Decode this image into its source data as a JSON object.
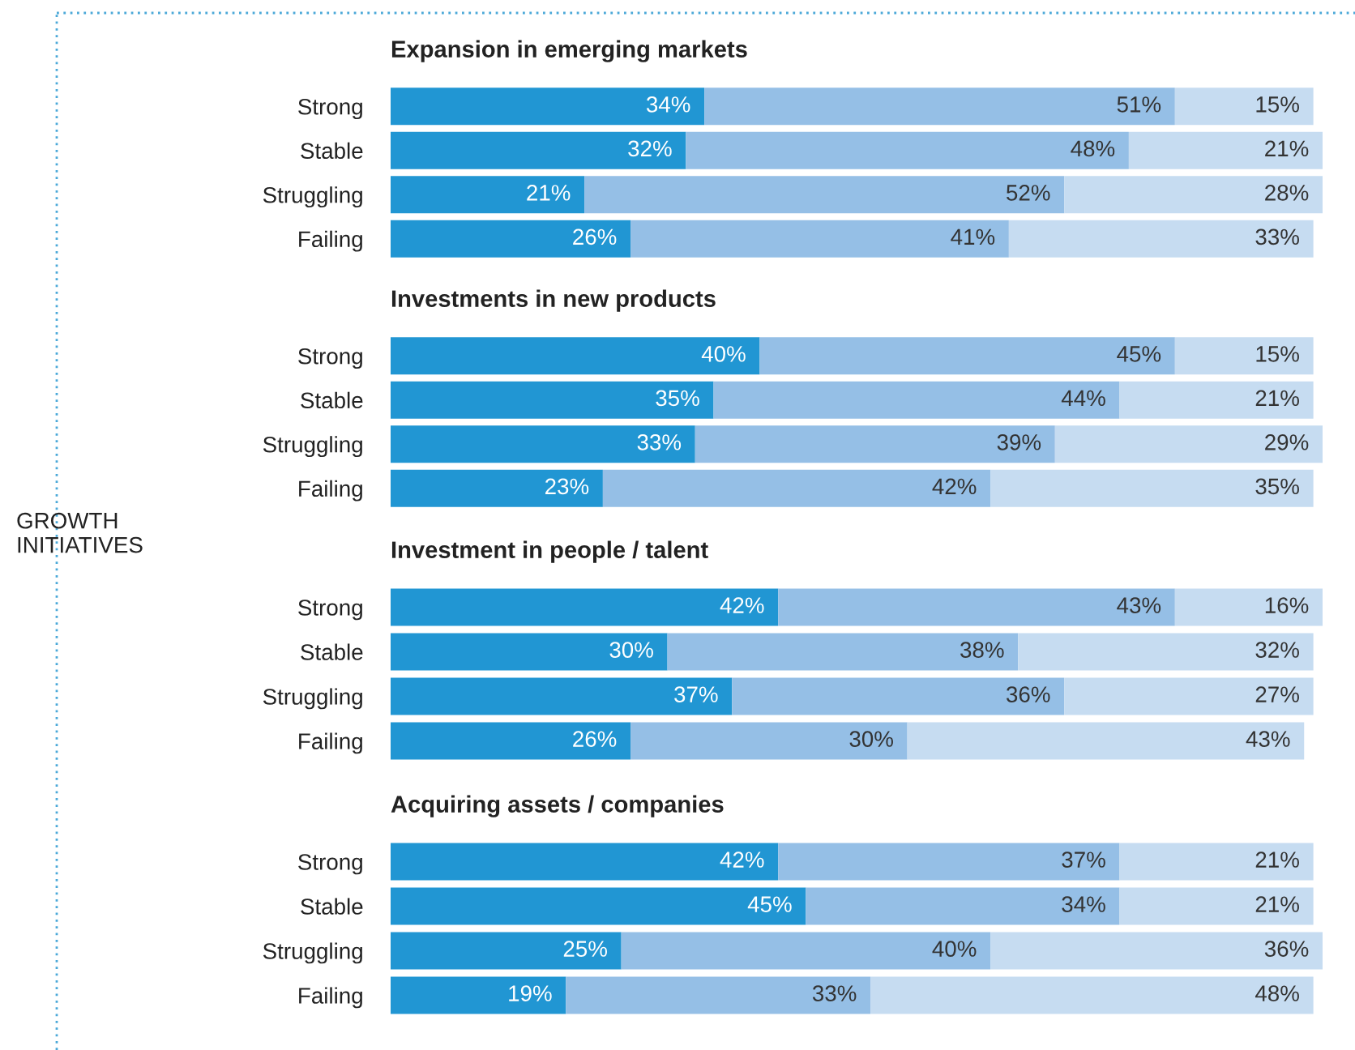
{
  "chart_data": [
    {
      "type": "bar",
      "orientation": "horizontal",
      "stacked": true,
      "title": "Expansion in emerging markets",
      "annotations": [
        "GROWTH INITIATIVES"
      ],
      "categories": [
        "Strong",
        "Stable",
        "Struggling",
        "Failing"
      ],
      "series": [
        {
          "color": "#2196d3",
          "values": [
            34,
            32,
            21,
            26
          ],
          "value_labels": [
            "34%",
            "32%",
            "21%",
            "26%"
          ]
        },
        {
          "color": "#95bfe6",
          "values": [
            51,
            48,
            52,
            41
          ],
          "value_labels": [
            "51%",
            "48%",
            "52%",
            "41%"
          ]
        },
        {
          "color": "#c6dcf1",
          "values": [
            15,
            21,
            28,
            33
          ],
          "value_labels": [
            "15%",
            "21%",
            "28%",
            "33%"
          ]
        }
      ]
    },
    {
      "type": "bar",
      "orientation": "horizontal",
      "stacked": true,
      "title": "Investments in new products",
      "categories": [
        "Strong",
        "Stable",
        "Struggling",
        "Failing"
      ],
      "series": [
        {
          "color": "#2196d3",
          "values": [
            40,
            35,
            33,
            23
          ],
          "value_labels": [
            "40%",
            "35%",
            "33%",
            "23%"
          ]
        },
        {
          "color": "#95bfe6",
          "values": [
            45,
            44,
            39,
            42
          ],
          "value_labels": [
            "45%",
            "44%",
            "39%",
            "42%"
          ]
        },
        {
          "color": "#c6dcf1",
          "values": [
            15,
            21,
            29,
            35
          ],
          "value_labels": [
            "15%",
            "21%",
            "29%",
            "35%"
          ]
        }
      ]
    },
    {
      "type": "bar",
      "orientation": "horizontal",
      "stacked": true,
      "title": "Investment in people / talent",
      "categories": [
        "Strong",
        "Stable",
        "Struggling",
        "Failing"
      ],
      "series": [
        {
          "color": "#2196d3",
          "values": [
            42,
            30,
            37,
            26
          ],
          "value_labels": [
            "42%",
            "30%",
            "37%",
            "26%"
          ]
        },
        {
          "color": "#95bfe6",
          "values": [
            43,
            38,
            36,
            30
          ],
          "value_labels": [
            "43%",
            "38%",
            "36%",
            "30%"
          ]
        },
        {
          "color": "#c6dcf1",
          "values": [
            16,
            32,
            27,
            43
          ],
          "value_labels": [
            "16%",
            "32%",
            "27%",
            "43%"
          ]
        }
      ]
    },
    {
      "type": "bar",
      "orientation": "horizontal",
      "stacked": true,
      "title": "Acquiring assets / companies",
      "categories": [
        "Strong",
        "Stable",
        "Struggling",
        "Failing"
      ],
      "series": [
        {
          "color": "#2196d3",
          "values": [
            42,
            45,
            25,
            19
          ],
          "value_labels": [
            "42%",
            "45%",
            "25%",
            "19%"
          ]
        },
        {
          "color": "#95bfe6",
          "values": [
            37,
            34,
            40,
            33
          ],
          "value_labels": [
            "37%",
            "34%",
            "40%",
            "33%"
          ]
        },
        {
          "color": "#c6dcf1",
          "values": [
            21,
            21,
            36,
            48
          ],
          "value_labels": [
            "21%",
            "21%",
            "36%",
            "48%"
          ]
        }
      ]
    }
  ]
}
